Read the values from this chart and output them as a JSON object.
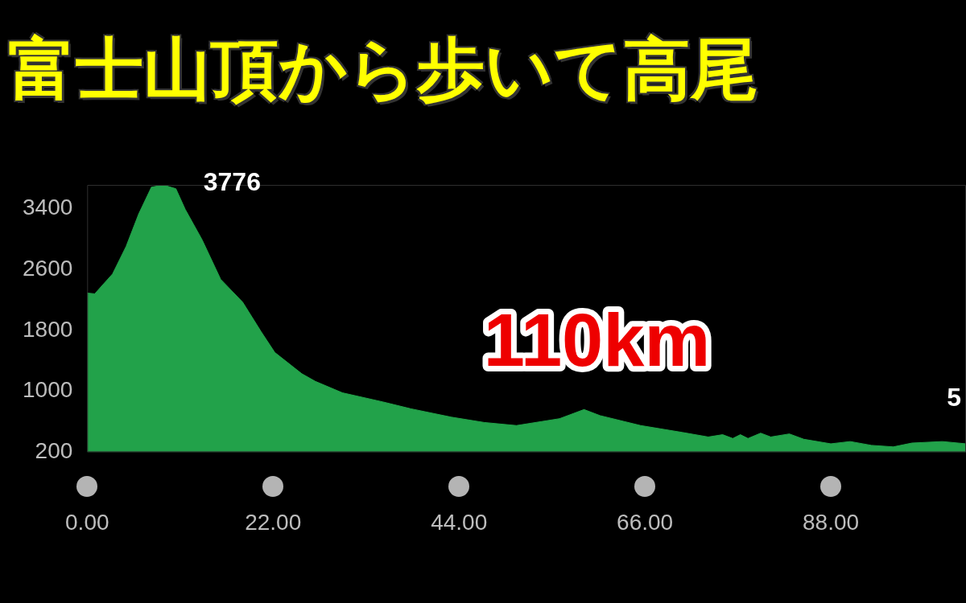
{
  "chart_data": {
    "type": "area",
    "title": "富士山頂から歩いて高尾",
    "x": [
      0,
      0.9,
      1.7,
      3.0,
      4.6,
      6.1,
      7.6,
      9.0,
      10.5,
      11.6,
      13.6,
      15.8,
      18.4,
      20.6,
      22.2,
      25.4,
      27.0,
      30.2,
      35.0,
      38.3,
      43.1,
      47.0,
      50.8,
      55.9,
      58.8,
      60.7,
      65.5,
      70.4,
      73.5,
      75.2,
      76.4,
      77.3,
      78.2,
      79.7,
      80.9,
      83.1,
      84.8,
      88.0,
      90.3,
      92.8,
      95.4,
      97.6,
      101.2,
      104.0
    ],
    "series": [
      {
        "color": "#22a24a",
        "values": [
          2290,
          2280,
          2380,
          2540,
          2900,
          3330,
          3680,
          3710,
          3660,
          3390,
          2990,
          2470,
          2170,
          1780,
          1510,
          1230,
          1130,
          980,
          860,
          770,
          660,
          590,
          550,
          640,
          760,
          680,
          550,
          460,
          400,
          430,
          380,
          430,
          380,
          450,
          400,
          440,
          370,
          310,
          340,
          290,
          270,
          320,
          340,
          310
        ]
      }
    ],
    "xlim": [
      0,
      104
    ],
    "ylim": [
      200,
      3710
    ],
    "xticks": [
      {
        "value": 0,
        "label": "0.00"
      },
      {
        "value": 22,
        "label": "22.00"
      },
      {
        "value": 44,
        "label": "44.00"
      },
      {
        "value": 66,
        "label": "66.00"
      },
      {
        "value": 88,
        "label": "88.00"
      }
    ],
    "yticks": [
      200,
      1000,
      1800,
      2600,
      3400
    ],
    "annotations": [
      "3776",
      "110km",
      "5"
    ],
    "grid": false,
    "legend": false,
    "marker": "none"
  }
}
